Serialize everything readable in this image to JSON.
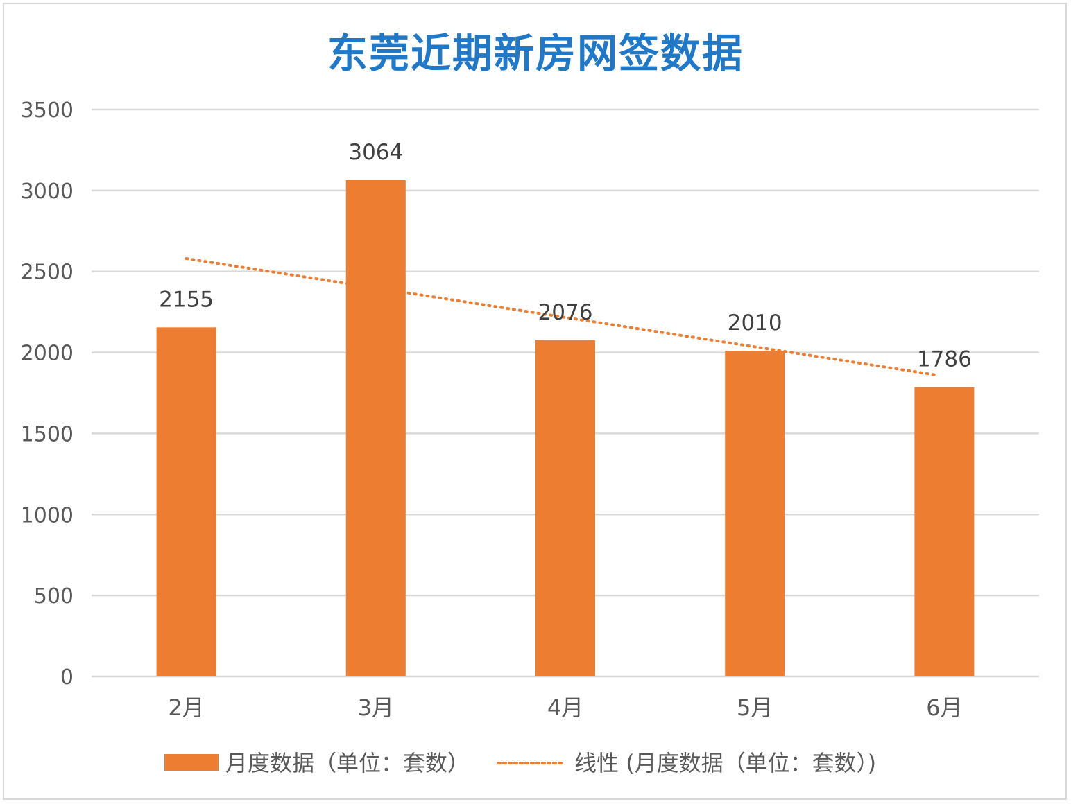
{
  "chart_data": {
    "type": "bar",
    "title": "东莞近期新房网签数据",
    "categories": [
      "2月",
      "3月",
      "4月",
      "5月",
      "6月"
    ],
    "series": [
      {
        "name": "月度数据（单位：套数）",
        "values": [
          2155,
          3064,
          2076,
          2010,
          1786
        ],
        "color": "#ed7d31"
      }
    ],
    "trendline": {
      "name": "线性 (月度数据（单位：套数）)",
      "type": "linear",
      "style": "dotted",
      "color": "#ed7d31",
      "start": 2580,
      "end": 1860
    },
    "ylim": [
      0,
      3500
    ],
    "yticks": [
      0,
      500,
      1000,
      1500,
      2000,
      2500,
      3000,
      3500
    ],
    "xlabel": "",
    "ylabel": "",
    "grid": true,
    "legend_position": "bottom",
    "colors": {
      "title": "#1f78c8",
      "bar": "#ed7d31",
      "grid": "#d9d9d9",
      "text": "#595959"
    }
  }
}
